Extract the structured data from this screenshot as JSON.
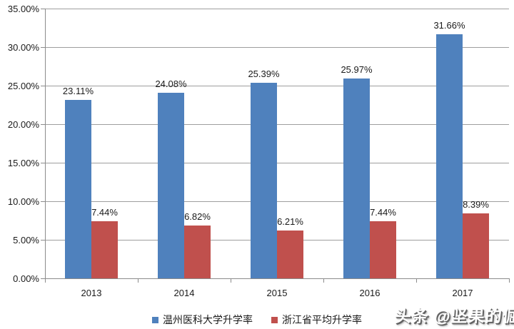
{
  "chart_data": {
    "type": "bar",
    "categories": [
      "2013",
      "2014",
      "2015",
      "2016",
      "2017"
    ],
    "series": [
      {
        "name": "温州医科大学升学率",
        "color": "#4F81BD",
        "values": [
          23.11,
          24.08,
          25.39,
          25.97,
          31.66
        ],
        "labels": [
          "23.11%",
          "24.08%",
          "25.39%",
          "25.97%",
          "31.66%"
        ]
      },
      {
        "name": "浙江省平均升学率",
        "color": "#C0504D",
        "values": [
          7.44,
          6.82,
          6.21,
          7.44,
          8.39
        ],
        "labels": [
          "7.44%",
          "6.82%",
          "6.21%",
          "7.44%",
          "8.39%"
        ]
      }
    ],
    "title": "",
    "xlabel": "",
    "ylabel": "",
    "ylim": [
      0,
      35
    ],
    "ytick_step": 5,
    "ytick_labels": [
      "0.00%",
      "5.00%",
      "10.00%",
      "15.00%",
      "20.00%",
      "25.00%",
      "30.00%",
      "35.00%"
    ],
    "grid": true,
    "legend_position": "bottom"
  },
  "watermark": {
    "text": "头条 @坚果的倔强"
  },
  "colors": {
    "gridline": "#9e9e9e",
    "axis": "#8c8c8c",
    "text": "#1a1a1a"
  }
}
